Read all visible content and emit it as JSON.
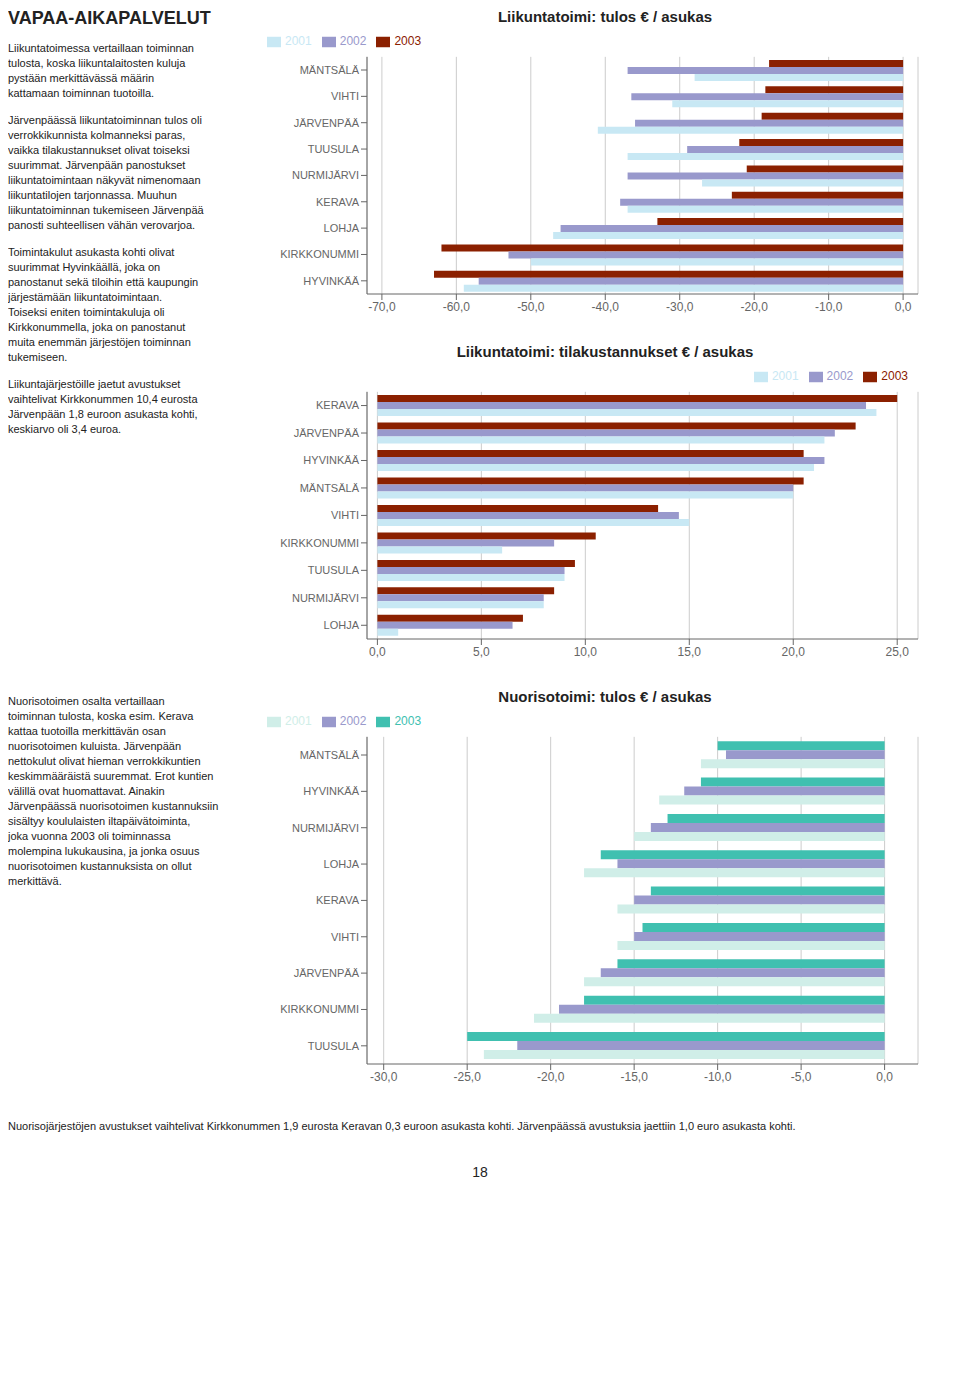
{
  "title": "VAPAA-AIKAPALVELUT",
  "annotations": [
    [
      [
        "Liikuntatoimessa vertaillaan toiminnan",
        "tulosta, koska liikuntalaitosten kuluja",
        "pystään merkittävässä määrin",
        "kattamaan toiminnan tuotoilla."
      ],
      [
        "Järvenpäässä liikuntatoiminnan tulos oli",
        "verrokkikunnista kolmanneksi paras,",
        "vaikka tilakustannukset olivat toiseksi",
        "suurimmat. Järvenpään panostukset",
        "liikuntatoimintaan näkyvät nimenomaan",
        "liikuntatilojen tarjonnassa. Muuhun",
        "liikuntatoiminnan tukemiseen Järvenpää",
        "panosti suhteellisen vähän verovarjoa."
      ],
      [
        "Toimintakulut asukasta kohti olivat",
        "suurimmat Hyvinkäällä, joka on",
        "panostanut sekä tiloihin että kaupungin",
        "järjestämään liikuntatoimintaan.",
        "Toiseksi eniten toimintakuluja oli",
        "Kirkkonummella, joka on panostanut",
        "muita enemmän järjestöjen toiminnan",
        "tukemiseen."
      ],
      [
        "Liikuntajärjestöille jaetut avustukset",
        "vaihtelivat Kirkkonummen 10,4 eurosta",
        "Järvenpään 1,8 euroon asukasta kohti,",
        "keskiarvo oli 3,4 euroa."
      ]
    ],
    [
      [
        "Nuorisotoimen osalta vertaillaan",
        "toiminnan tulosta, koska esim. Kerava",
        "kattaa tuotoilla merkittävän osan",
        "nuorisotoimen kuluista. Järvenpään",
        "nettokulut olivat hieman verrokkikuntien",
        "keskimmääräistä suuremmat. Erot kuntien",
        "välillä ovat huomattavat. Ainakin",
        "Järvenpäässä nuorisotoimen kustannuksiin",
        "sisältyy koululaisten iltapäivätoiminta,",
        "joka vuonna 2003 oli toiminnassa",
        "molempina lukukausina, ja jonka osuus",
        "nuorisotoimen kustannuksista on ollut",
        "merkittävä."
      ]
    ],
    [
      [
        "Nuorisojärjestöjen avustukset vaihtelivat Kirkkonummen 1,9 eurosta Keravan 0,3 euroon asukasta kohti. Järvenpäässä avustuksia jaettiin 1,0 euro asukasta kohti."
      ]
    ],
    [
      [
        "18"
      ]
    ]
  ],
  "chart_data": [
    {
      "type": "bar",
      "orientation": "horizontal",
      "title": "Liikuntatoimi: tulos € / asukas",
      "categories": [
        "HYVINKÄÄ",
        "KIRKKONUMMI",
        "LOHJA",
        "KERAVA",
        "NURMIJÄRVI",
        "TUUSULA",
        "JÄRVENPÄÄ",
        "VIHTI",
        "MÄNTSÄLÄ"
      ],
      "series": [
        {
          "name": "2003",
          "color": "#8B2000",
          "values": [
            -63.0,
            -62.0,
            -33.0,
            -23.0,
            -21.0,
            -22.0,
            -19.0,
            -18.5,
            -18.0
          ]
        },
        {
          "name": "2002",
          "color": "#9999CC",
          "values": [
            -57.0,
            -53.0,
            -46.0,
            -38.0,
            -37.0,
            -29.0,
            -36.0,
            -36.5,
            -37.0
          ]
        },
        {
          "name": "2001",
          "color": "#C8E8F4",
          "values": [
            -59.0,
            -50.0,
            -47.0,
            -37.0,
            -27.0,
            -37.0,
            -41.0,
            -31.0,
            -28.0
          ]
        }
      ],
      "xlim": [
        -72.0,
        2.0
      ],
      "xticks": [
        {
          "value": -70,
          "label": "-70,0"
        },
        {
          "value": -60,
          "label": "-60,0"
        },
        {
          "value": -50,
          "label": "-50,0"
        },
        {
          "value": -40,
          "label": "-40,0"
        },
        {
          "value": -30,
          "label": "-30,0"
        },
        {
          "value": -20,
          "label": "-20,0"
        },
        {
          "value": -10,
          "label": "-10,0"
        },
        {
          "value": 0,
          "label": "0,0"
        }
      ],
      "grid": true,
      "legend": "upper left"
    },
    {
      "type": "bar",
      "orientation": "horizontal",
      "title": "Liikuntatoimi: tilakustannukset € / asukas",
      "categories": [
        "LOHJA",
        "NURMIJÄRVI",
        "TUUSULA",
        "KIRKKONUMMI",
        "VIHTI",
        "MÄNTSÄLÄ",
        "HYVINKÄÄ",
        "JÄRVENPÄÄ",
        "KERAVA"
      ],
      "series": [
        {
          "name": "2003",
          "color": "#8B2000",
          "values": [
            7.0,
            8.5,
            9.5,
            10.5,
            13.5,
            20.5,
            20.5,
            23.0,
            25.0
          ]
        },
        {
          "name": "2002",
          "color": "#9999CC",
          "values": [
            6.5,
            8.0,
            9.0,
            8.5,
            14.5,
            20.0,
            21.5,
            22.0,
            23.5
          ]
        },
        {
          "name": "2001",
          "color": "#C8E8F4",
          "values": [
            1.0,
            8.0,
            9.0,
            6.0,
            15.0,
            20.0,
            21.0,
            21.5,
            24.0
          ]
        }
      ],
      "xlim": [
        -0.5,
        26.0
      ],
      "xticks": [
        {
          "value": 0,
          "label": "0,0"
        },
        {
          "value": 5,
          "label": "5,0"
        },
        {
          "value": 10,
          "label": "10,0"
        },
        {
          "value": 15,
          "label": "15,0"
        },
        {
          "value": 20,
          "label": "20,0"
        },
        {
          "value": 25,
          "label": "25,0"
        }
      ],
      "grid": true,
      "legend": "upper right"
    },
    {
      "type": "bar",
      "orientation": "horizontal",
      "title": "Nuorisotoimi: tulos € / asukas",
      "categories": [
        "TUUSULA",
        "KIRKKONUMMI",
        "JÄRVENPÄÄ",
        "VIHTI",
        "KERAVA",
        "LOHJA",
        "NURMIJÄRVI",
        "HYVINKÄÄ",
        "MÄNTSÄLÄ"
      ],
      "series": [
        {
          "name": "2003",
          "color": "#40C0B0",
          "values": [
            -25.0,
            -18.0,
            -16.0,
            -14.5,
            -14.0,
            -17.0,
            -13.0,
            -11.0,
            -10.0
          ]
        },
        {
          "name": "2002",
          "color": "#9999CC",
          "values": [
            -22.0,
            -19.5,
            -17.0,
            -15.0,
            -15.0,
            -16.0,
            -14.0,
            -12.0,
            -9.5
          ]
        },
        {
          "name": "2001",
          "color": "#D0EEE8",
          "values": [
            -24.0,
            -21.0,
            -18.0,
            -16.0,
            -16.0,
            -18.0,
            -15.0,
            -13.5,
            -11.0
          ]
        }
      ],
      "xlim": [
        -31.0,
        2.0
      ],
      "xticks": [
        {
          "value": -30,
          "label": "-30,0"
        },
        {
          "value": -25,
          "label": "-25,0"
        },
        {
          "value": -20,
          "label": "-20,0"
        },
        {
          "value": -15,
          "label": "-15,0"
        },
        {
          "value": -10,
          "label": "-10,0"
        },
        {
          "value": -5,
          "label": "-5,0"
        },
        {
          "value": 0,
          "label": "0,0"
        }
      ],
      "grid": true,
      "legend": "upper left"
    }
  ]
}
